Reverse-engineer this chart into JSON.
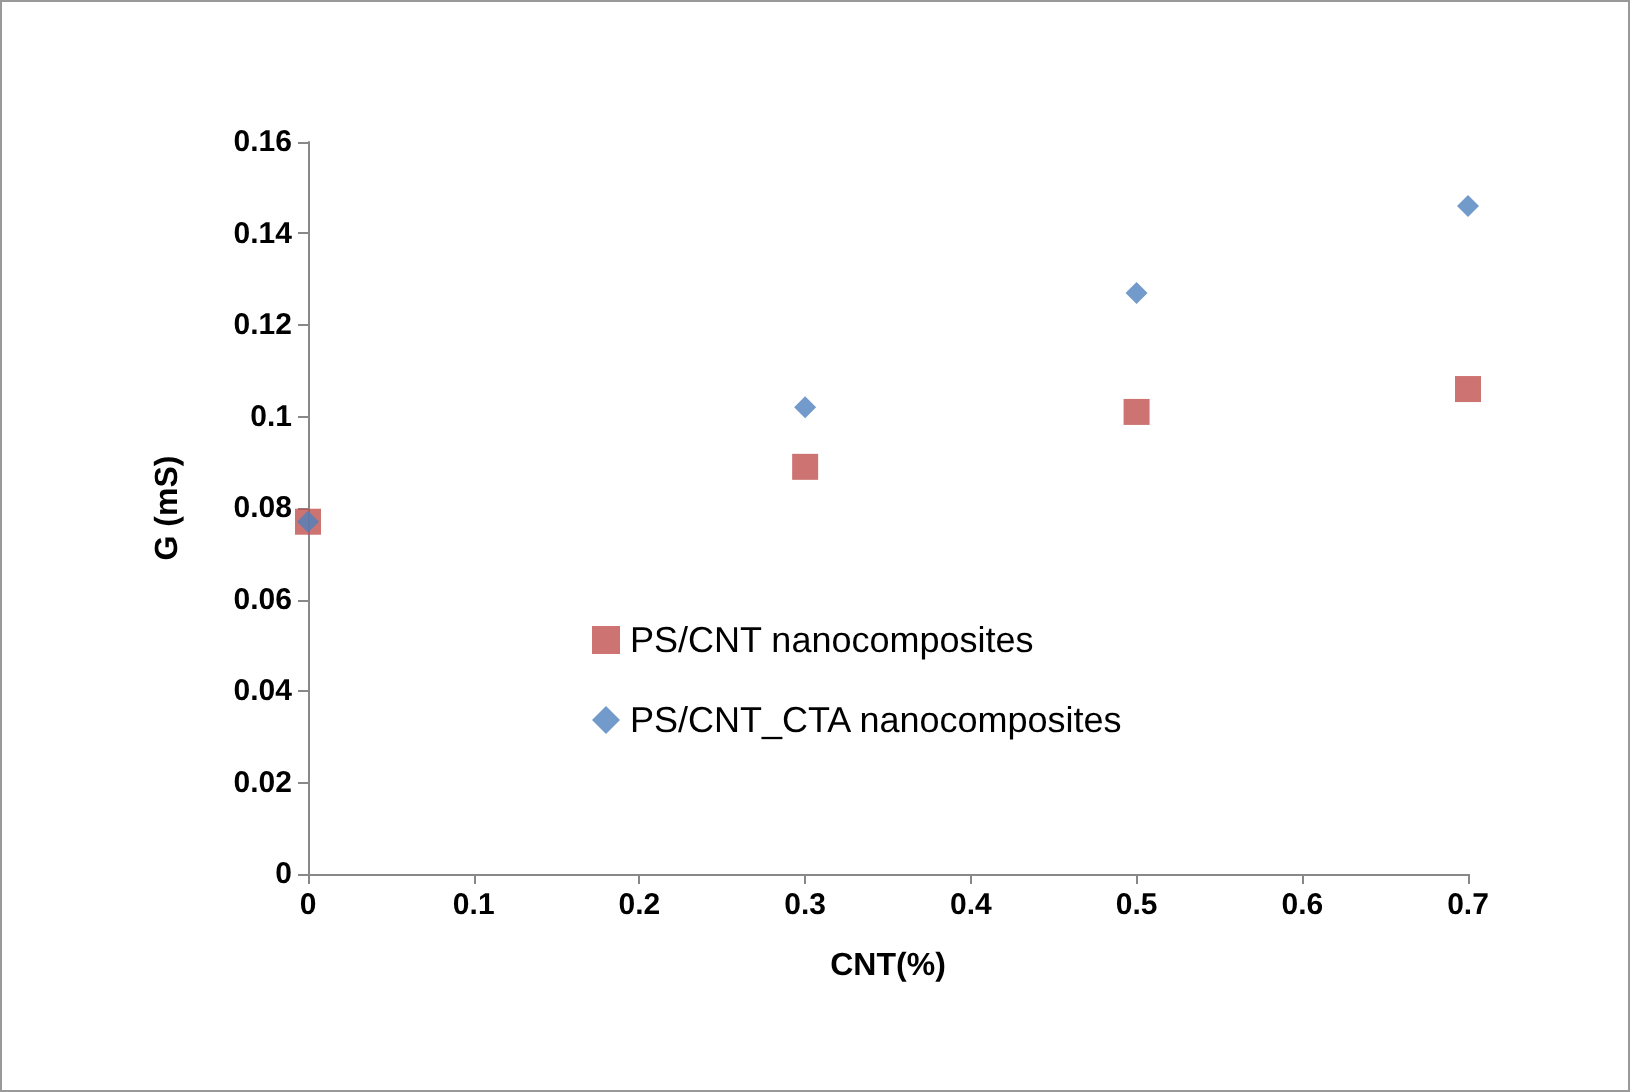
{
  "chart_data": {
    "type": "scatter",
    "xlabel": "CNT(%)",
    "ylabel": "G (mS)",
    "x": [
      0,
      0.3,
      0.5,
      0.7
    ],
    "series": [
      {
        "name": "PS/CNT nanocomposites",
        "color": "#c0504d",
        "marker": "square",
        "values": [
          0.077,
          0.089,
          0.101,
          0.106
        ]
      },
      {
        "name": "PS/CNT_CTA nanocomposites",
        "color": "#4f81bd",
        "marker": "diamond",
        "values": [
          0.077,
          0.102,
          0.127,
          0.146
        ]
      }
    ],
    "xlim": [
      0,
      0.7
    ],
    "xticks": [
      0,
      0.1,
      0.2,
      0.3,
      0.4,
      0.5,
      0.6,
      0.7
    ],
    "ylim": [
      0,
      0.16
    ],
    "yticks": [
      0,
      0.02,
      0.04,
      0.06,
      0.08,
      0.1,
      0.12,
      0.14,
      0.16
    ],
    "grid": false,
    "legend": "left"
  }
}
